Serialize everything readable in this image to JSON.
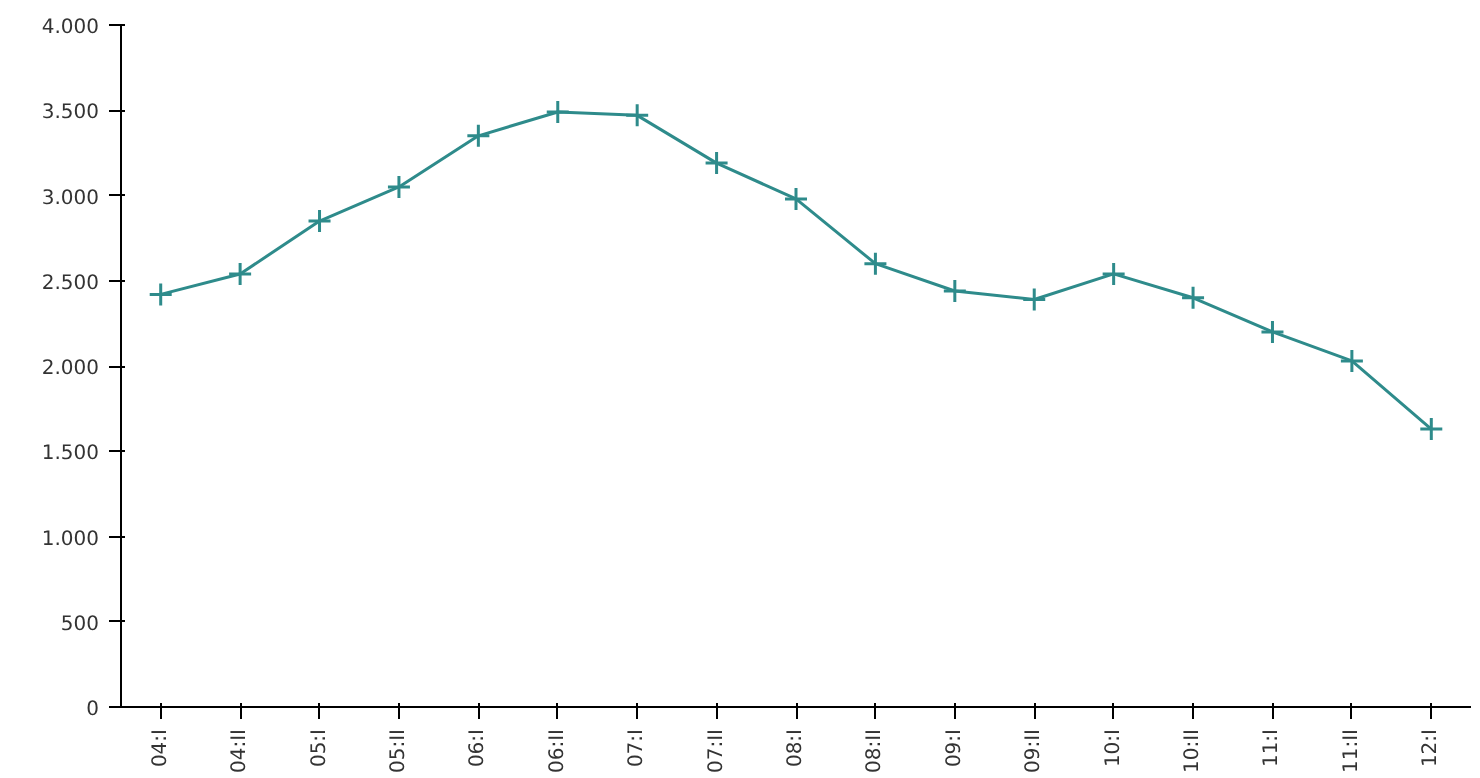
{
  "chart_data": {
    "type": "line",
    "categories": [
      "04:I",
      "04:II",
      "05:I",
      "05:II",
      "06:I",
      "06:II",
      "07:I",
      "07:II",
      "08:I",
      "08:II",
      "09:I",
      "09:II",
      "10:I",
      "10:II",
      "11:I",
      "11:II",
      "12:I"
    ],
    "series": [
      {
        "color": "#2e8b8b",
        "values": [
          2420,
          2540,
          2850,
          3050,
          3350,
          3490,
          3470,
          3190,
          2980,
          2600,
          2440,
          2390,
          2540,
          2400,
          2200,
          2030,
          1630
        ]
      }
    ],
    "ylim": [
      0,
      4000
    ],
    "yticks": [
      0,
      500,
      {
        "value": 1000,
        "label": "1.000"
      },
      {
        "value": 1500,
        "label": "1.500"
      },
      {
        "value": 2000,
        "label": "2.000"
      },
      {
        "value": 2500,
        "label": "2.500"
      },
      {
        "value": 3000,
        "label": "3.000"
      },
      {
        "value": 3500,
        "label": "3.500"
      },
      {
        "value": 4000,
        "label": "4.000"
      }
    ],
    "marker": "cross",
    "line_style": "solid"
  }
}
